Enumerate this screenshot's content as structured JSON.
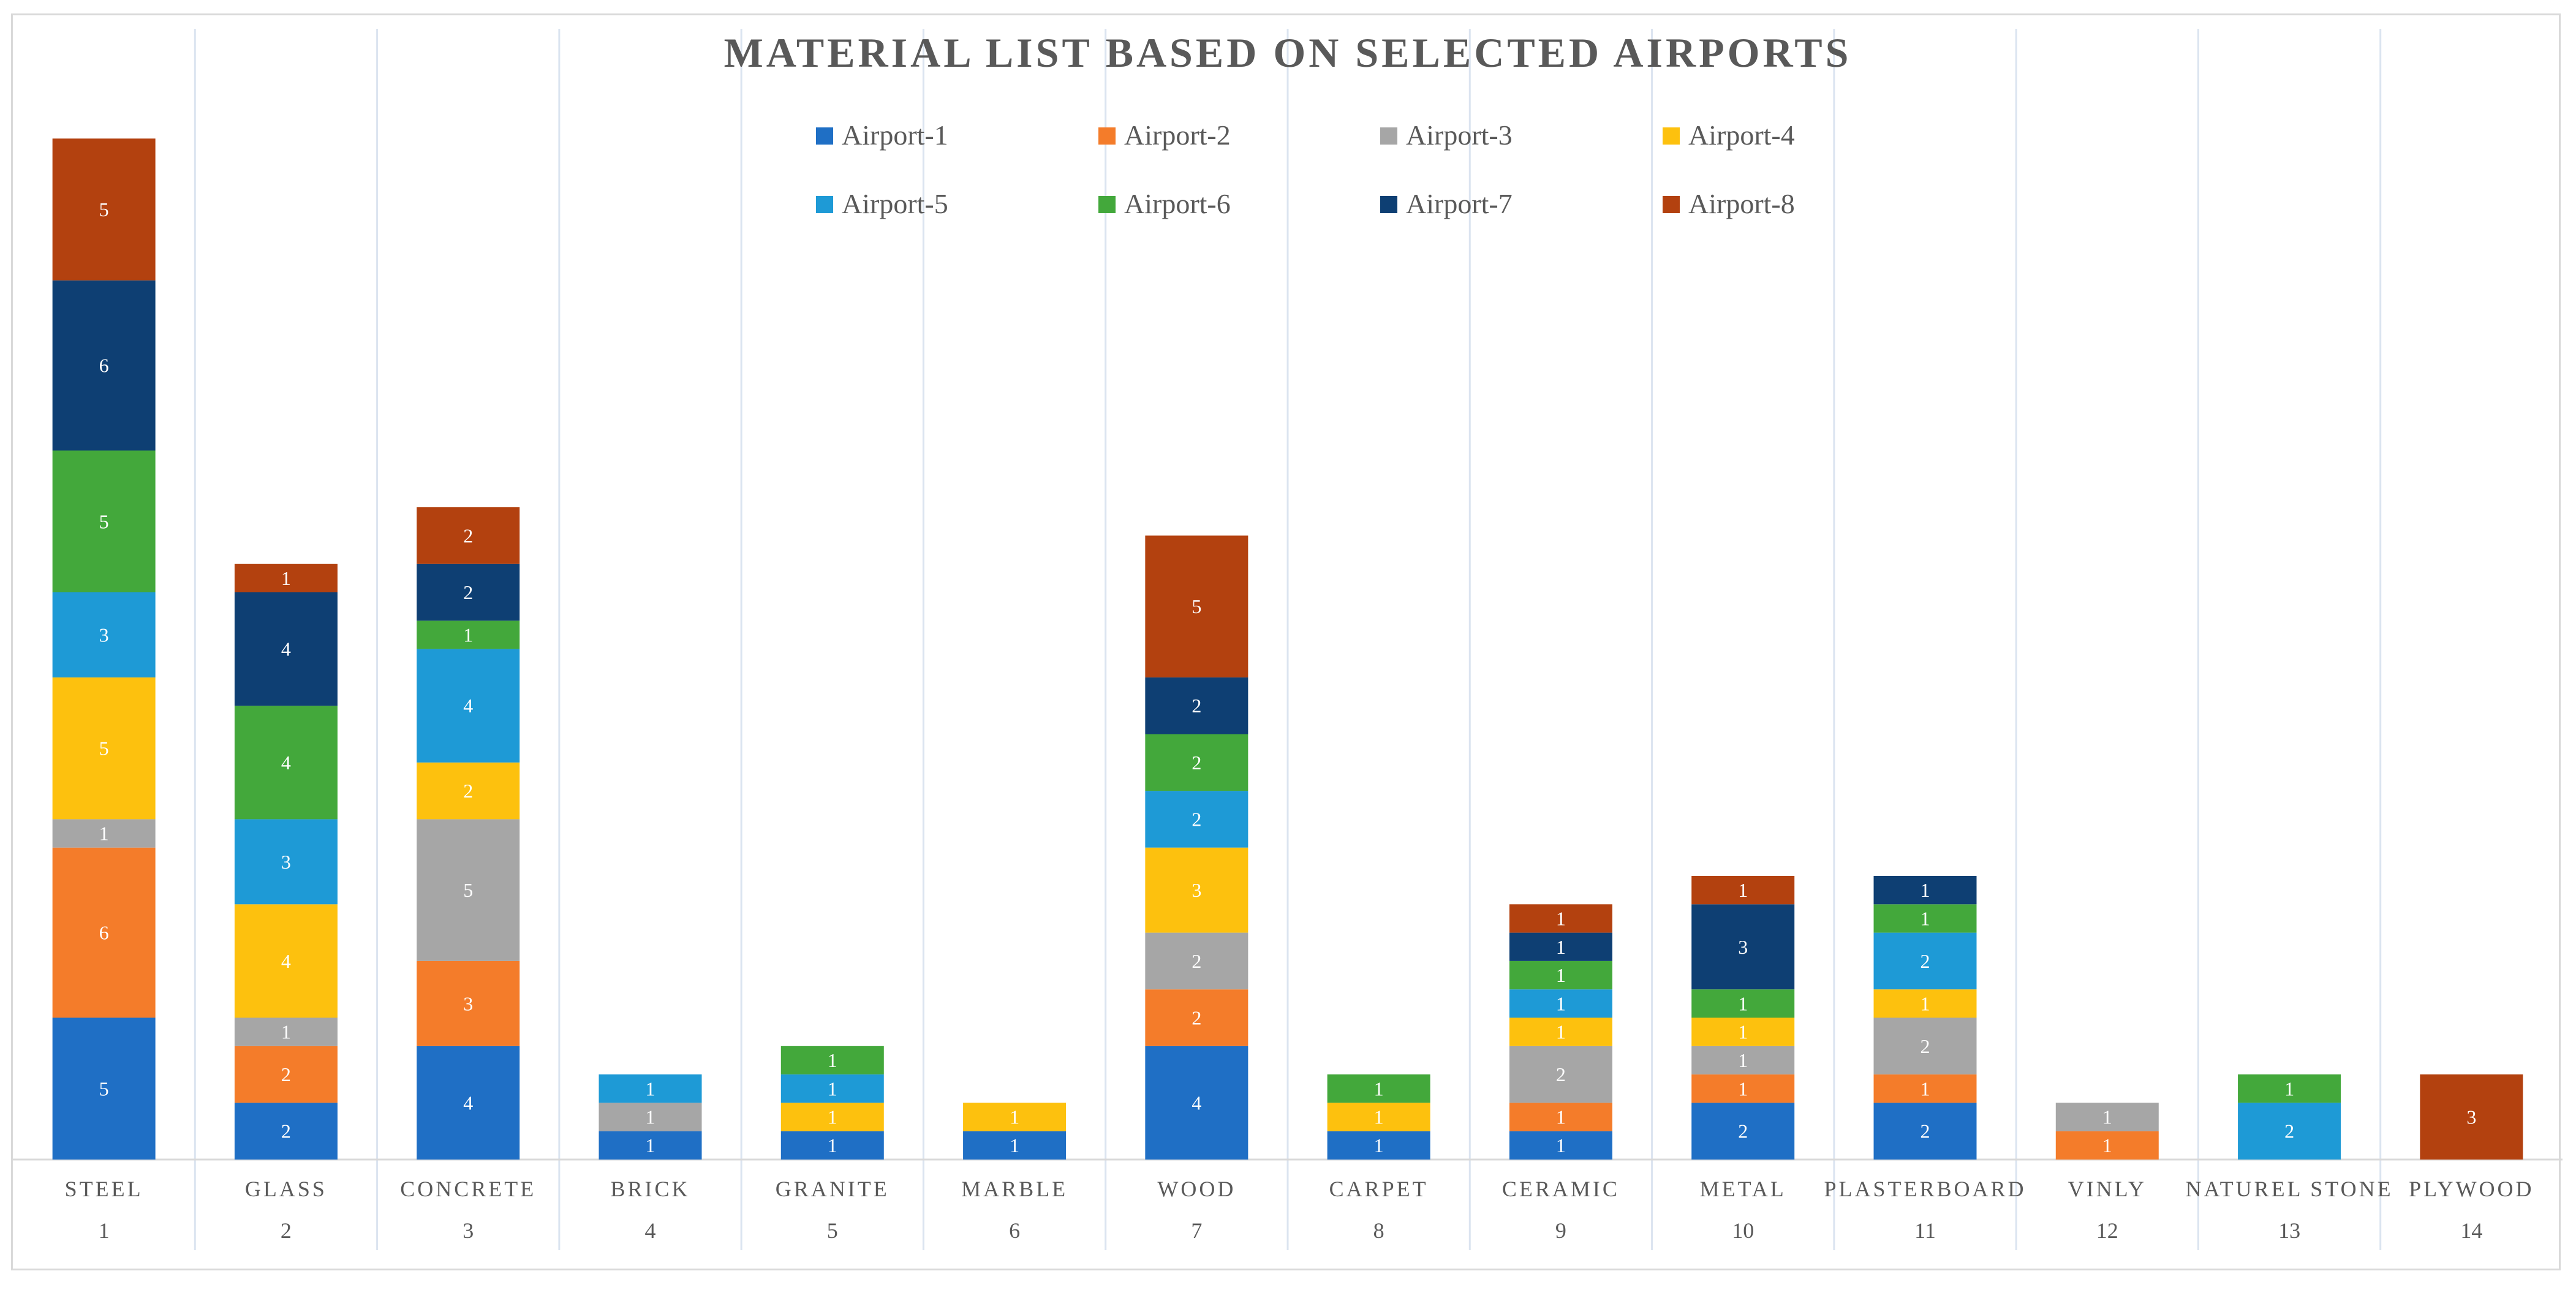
{
  "chart_data": {
    "type": "bar",
    "stacked": true,
    "title": "MATERIAL LIST BASED ON SELECTED AIRPORTS",
    "categories": [
      "STEEL",
      "GLASS",
      "CONCRETE",
      "BRICK",
      "GRANITE",
      "MARBLE",
      "WOOD",
      "CARPET",
      "CERAMIC",
      "METAL",
      "PLASTERBOARD",
      "VINLY",
      "NATUREL STONE",
      "PLYWOOD"
    ],
    "category_numbers": [
      "1",
      "2",
      "3",
      "4",
      "5",
      "6",
      "7",
      "8",
      "9",
      "10",
      "11",
      "12",
      "13",
      "14"
    ],
    "series": [
      {
        "name": "Airport-1",
        "color": "#1f6fc5",
        "values": [
          5,
          2,
          4,
          1,
          1,
          1,
          4,
          1,
          1,
          2,
          2,
          0,
          0,
          0
        ]
      },
      {
        "name": "Airport-2",
        "color": "#f47c2a",
        "values": [
          6,
          2,
          3,
          0,
          0,
          0,
          2,
          0,
          1,
          1,
          1,
          1,
          0,
          0
        ]
      },
      {
        "name": "Airport-3",
        "color": "#a6a6a6",
        "values": [
          1,
          1,
          5,
          1,
          0,
          0,
          2,
          0,
          2,
          1,
          2,
          1,
          0,
          0
        ]
      },
      {
        "name": "Airport-4",
        "color": "#fdc10e",
        "values": [
          5,
          4,
          2,
          0,
          1,
          1,
          3,
          1,
          1,
          1,
          1,
          0,
          0,
          0
        ]
      },
      {
        "name": "Airport-5",
        "color": "#1e9ad6",
        "values": [
          3,
          3,
          4,
          1,
          1,
          0,
          2,
          0,
          1,
          0,
          2,
          0,
          2,
          0
        ]
      },
      {
        "name": "Airport-6",
        "color": "#43a83b",
        "values": [
          5,
          4,
          1,
          0,
          1,
          0,
          2,
          1,
          1,
          1,
          1,
          0,
          1,
          0
        ]
      },
      {
        "name": "Airport-7",
        "color": "#0e3f73",
        "values": [
          6,
          4,
          2,
          0,
          0,
          0,
          2,
          0,
          1,
          3,
          1,
          0,
          0,
          0
        ]
      },
      {
        "name": "Airport-8",
        "color": "#b3410f",
        "values": [
          5,
          1,
          2,
          0,
          0,
          0,
          5,
          0,
          1,
          1,
          0,
          0,
          0,
          3
        ]
      }
    ],
    "data_labels": true,
    "legend_position": "top-center",
    "grid": "vertical category separators",
    "ylim": [
      0,
      36
    ]
  }
}
